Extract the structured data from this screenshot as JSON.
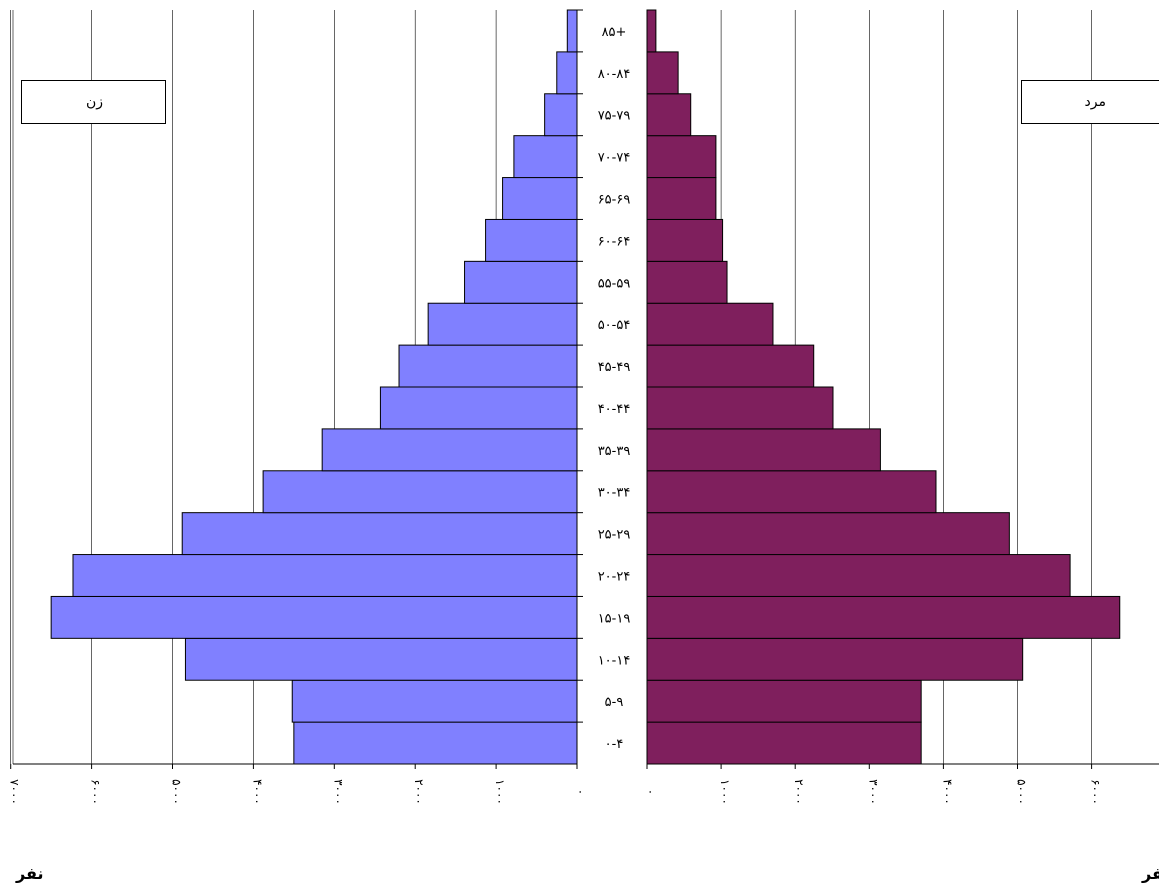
{
  "chart_data": {
    "type": "bar",
    "categories": [
      "۰-۴",
      "۵-۹",
      "۱۰-۱۴",
      "۱۵-۱۹",
      "۲۰-۲۴",
      "۲۵-۲۹",
      "۳۰-۳۴",
      "۳۵-۳۹",
      "۴۰-۴۴",
      "۴۵-۴۹",
      "۵۰-۵۴",
      "۵۵-۵۹",
      "۶۰-۶۴",
      "۶۵-۶۹",
      "۷۰-۷۴",
      "۷۵-۷۹",
      "۸۰-۸۴",
      "۸۵+"
    ],
    "series": [
      {
        "name": "زن",
        "side": "left",
        "color": "#8080ff",
        "values": [
          3500,
          3520,
          4840,
          6500,
          6230,
          4880,
          3880,
          3150,
          2430,
          2200,
          1840,
          1390,
          1130,
          920,
          780,
          400,
          250,
          120
        ]
      },
      {
        "name": "مرد",
        "side": "right",
        "color": "#7f1f5d",
        "values": [
          3700,
          3700,
          5070,
          6380,
          5710,
          4890,
          3900,
          3150,
          2510,
          2250,
          1700,
          1080,
          1020,
          930,
          930,
          590,
          420,
          120
        ]
      }
    ],
    "left_axis": {
      "ticks": [
        "۰",
        "۱۰۰۰",
        "۲۰۰۰",
        "۳۰۰۰",
        "۴۰۰۰",
        "۵۰۰۰",
        "۶۰۰۰",
        "۷۰۰۰"
      ],
      "range": [
        0,
        7000
      ]
    },
    "right_axis": {
      "ticks": [
        "۰",
        "۱۰۰۰",
        "۲۰۰۰",
        "۳۰۰۰",
        "۴۰۰۰",
        "۵۰۰۰",
        "۶۰۰۰"
      ],
      "range": [
        0,
        7000
      ]
    },
    "unit_label_left": "نفر",
    "unit_label_right": "نفر",
    "grid": true
  },
  "legend": {
    "female": "زن",
    "male": "مرد"
  },
  "colors": {
    "female": "#8080ff",
    "male": "#7f1f5d",
    "grid": "#000000"
  }
}
